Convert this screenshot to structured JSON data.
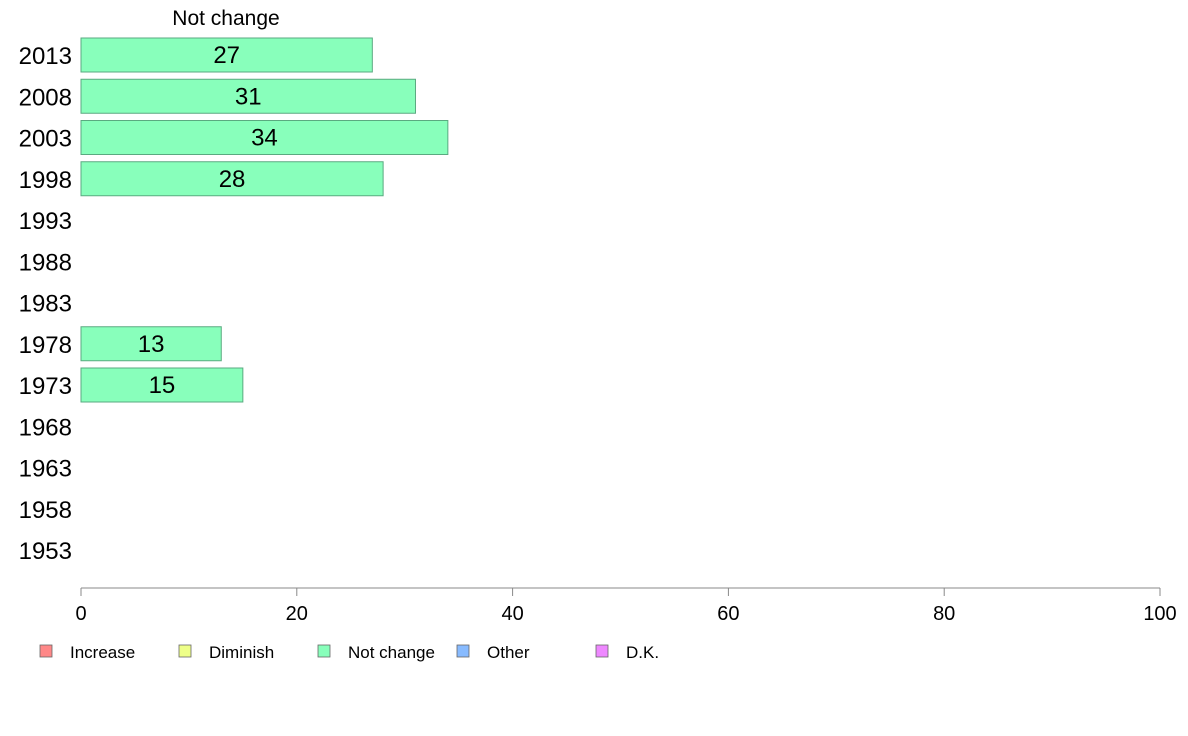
{
  "chart_data": {
    "type": "bar",
    "orientation": "horizontal",
    "panel_title": "Not change",
    "categories": [
      "2013",
      "2008",
      "2003",
      "1998",
      "1993",
      "1988",
      "1983",
      "1978",
      "1973",
      "1968",
      "1963",
      "1958",
      "1953"
    ],
    "series": [
      {
        "name": "Not change",
        "color": "#88ffbb",
        "values": [
          27,
          31,
          34,
          28,
          null,
          null,
          null,
          13,
          15,
          null,
          null,
          null,
          null
        ]
      }
    ],
    "xlim": [
      0,
      100
    ],
    "xticks": [
      0,
      20,
      40,
      60,
      80,
      100
    ],
    "grid": false,
    "legend_position": "bottom-left",
    "legend": [
      {
        "name": "Increase",
        "color": "#ff8888"
      },
      {
        "name": "Diminish",
        "color": "#eeff88"
      },
      {
        "name": "Not change",
        "color": "#88ffbb"
      },
      {
        "name": "Other",
        "color": "#88bbff"
      },
      {
        "name": "D.K.",
        "color": "#ee88ff"
      }
    ]
  }
}
